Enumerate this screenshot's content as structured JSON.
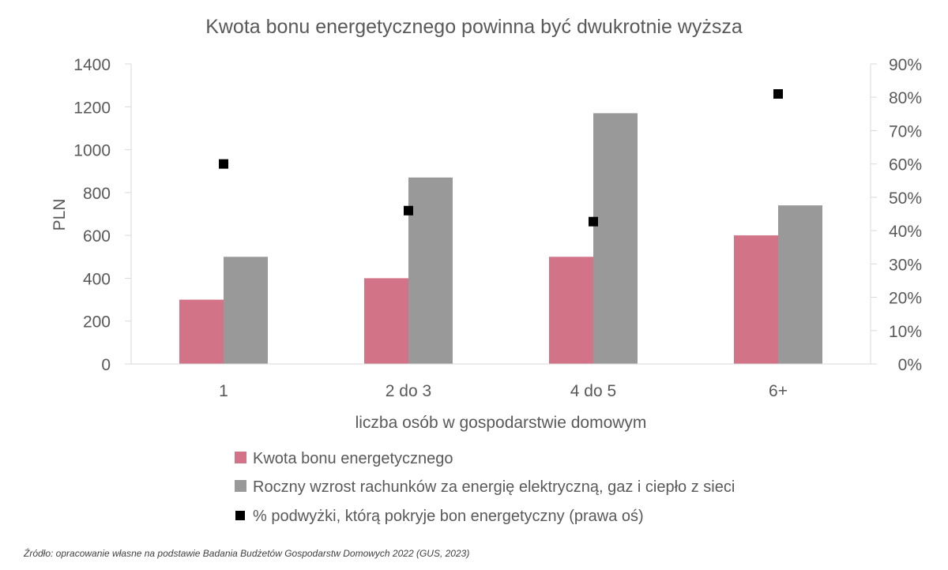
{
  "chart_data": {
    "type": "bar",
    "title": "Kwota bonu energetycznego powinna być dwukrotnie wyższa",
    "xlabel": "liczba osób w gospodarstwie domowym",
    "ylabel": "PLN",
    "categories": [
      "1",
      "2 do 3",
      "4 do 5",
      "6+"
    ],
    "ylim": [
      0,
      1400
    ],
    "yticks": [
      0,
      200,
      400,
      600,
      800,
      1000,
      1200,
      1400
    ],
    "y2lim": [
      0,
      90
    ],
    "y2ticks": [
      "0%",
      "10%",
      "20%",
      "30%",
      "40%",
      "50%",
      "60%",
      "70%",
      "80%",
      "90%"
    ],
    "series": [
      {
        "name": "Kwota bonu energetycznego",
        "type": "bar",
        "axis": "left",
        "color": "#d37387",
        "values": [
          300,
          400,
          500,
          600
        ]
      },
      {
        "name": "Roczny wzrost rachunków za energię elektryczną, gaz i ciepło z sieci",
        "type": "bar",
        "axis": "left",
        "color": "#999999",
        "values": [
          500,
          870,
          1170,
          740
        ]
      },
      {
        "name": "% podwyżki, którą pokryje bon energetyczny (prawa oś)",
        "type": "scatter",
        "axis": "right",
        "color": "#000000",
        "values": [
          60,
          46,
          42.7,
          81
        ]
      }
    ],
    "grid": false,
    "legend_position": "bottom"
  },
  "source_note": "Źródło: opracowanie własne na podstawie Badania Budżetów Gospodarstw Domowych 2022 (GUS, 2023)"
}
